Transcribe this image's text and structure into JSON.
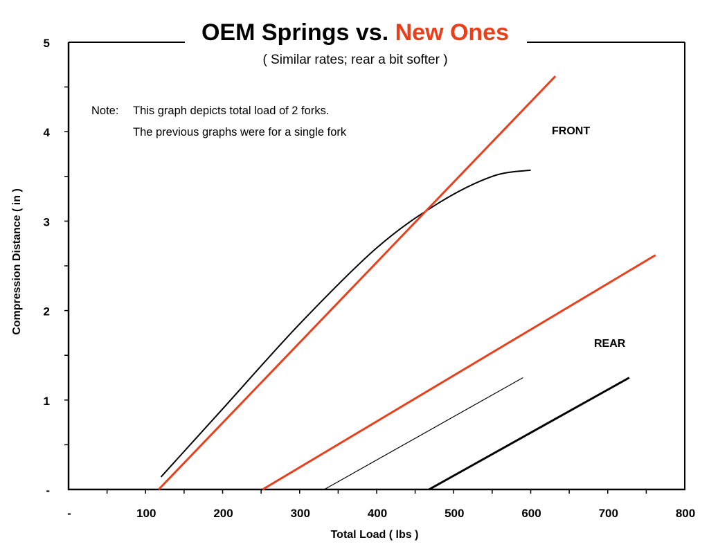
{
  "chart_data": {
    "type": "line",
    "title": {
      "part1": "OEM Springs vs. ",
      "part2": "New Ones"
    },
    "subtitle": "( Similar rates; rear a bit softer )",
    "xlabel": "Total Load ( lbs )",
    "ylabel": "Compression Distance ( in )",
    "xlim": [
      0,
      800
    ],
    "ylim": [
      0,
      5
    ],
    "x_ticks": [
      {
        "v": 0,
        "label": "-"
      },
      {
        "v": 100,
        "label": "100"
      },
      {
        "v": 200,
        "label": "200"
      },
      {
        "v": 300,
        "label": "300"
      },
      {
        "v": 400,
        "label": "400"
      },
      {
        "v": 500,
        "label": "500"
      },
      {
        "v": 600,
        "label": "600"
      },
      {
        "v": 700,
        "label": "700"
      },
      {
        "v": 800,
        "label": "800"
      }
    ],
    "y_ticks": [
      {
        "v": 0,
        "label": "-"
      },
      {
        "v": 1,
        "label": "1"
      },
      {
        "v": 2,
        "label": "2"
      },
      {
        "v": 3,
        "label": "3"
      },
      {
        "v": 4,
        "label": "4"
      },
      {
        "v": 5,
        "label": "5"
      }
    ],
    "note": {
      "prefix": "Note:",
      "line1": "This graph depicts total load of 2 forks.",
      "line2": "The previous graphs were for a single fork"
    },
    "annotations": {
      "front": "FRONT",
      "rear": "REAR"
    },
    "colors": {
      "oem": "#000000",
      "new": "#e8401c",
      "axis": "#000000"
    },
    "series": [
      {
        "id": "front-oem",
        "color": "#000000",
        "width": 2,
        "smooth": true,
        "points": [
          [
            120,
            0.14
          ],
          [
            200,
            0.9
          ],
          [
            300,
            1.85
          ],
          [
            400,
            2.7
          ],
          [
            480,
            3.2
          ],
          [
            550,
            3.5
          ],
          [
            600,
            3.57
          ]
        ]
      },
      {
        "id": "front-new",
        "color": "#e8401c",
        "width": 3,
        "smooth": false,
        "points": [
          [
            117,
            0
          ],
          [
            632,
            4.62
          ]
        ]
      },
      {
        "id": "rear-new",
        "color": "#e8401c",
        "width": 3,
        "smooth": false,
        "points": [
          [
            252,
            0
          ],
          [
            762,
            2.62
          ]
        ]
      },
      {
        "id": "rear-oem-thin",
        "color": "#000000",
        "width": 1.2,
        "smooth": false,
        "points": [
          [
            332,
            0
          ],
          [
            590,
            1.25
          ]
        ]
      },
      {
        "id": "rear-oem-thick",
        "color": "#000000",
        "width": 3,
        "smooth": false,
        "points": [
          [
            468,
            0
          ],
          [
            728,
            1.25
          ]
        ]
      }
    ]
  }
}
